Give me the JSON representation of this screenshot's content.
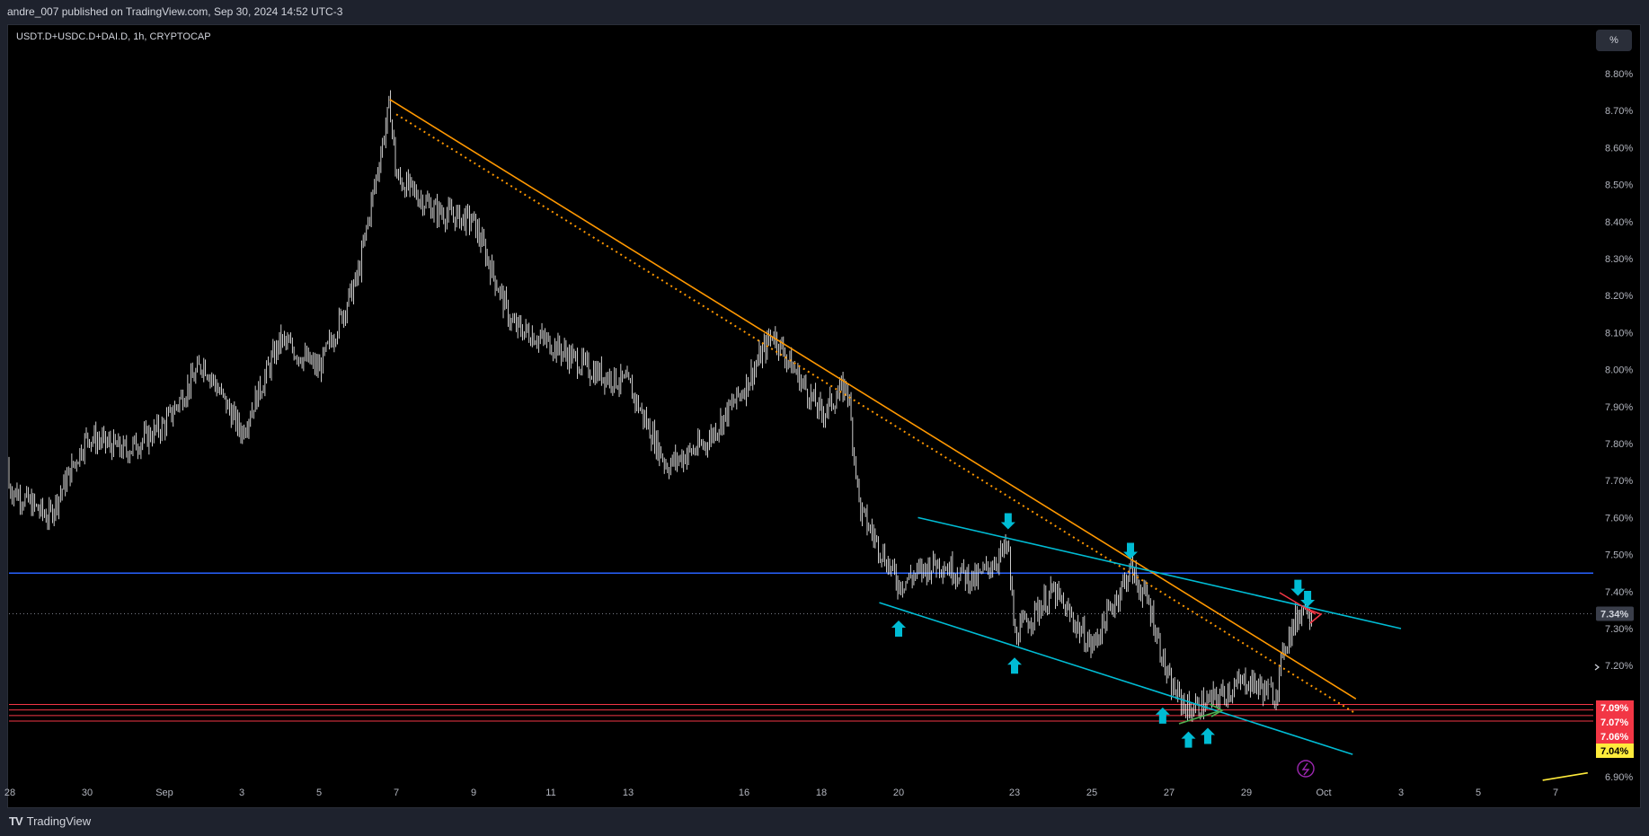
{
  "header": {
    "text": "andre_007 published on TradingView.com, Sep 30, 2024 14:52 UTC-3"
  },
  "symbol_label": "USDT.D+USDC.D+DAI.D, 1h, CRYPTOCAP",
  "scale_button": "%",
  "brand": {
    "logo": "TV",
    "name": "TradingView"
  },
  "colors": {
    "background": "#000000",
    "candle": "#ffffff",
    "downtrend": "#ff9800",
    "channel": "#00bcd4",
    "support": "#f23645",
    "resistance": "#2962ff",
    "arrow": "#00bcd4",
    "breakout": "#f23645",
    "bounce": "#4caf50"
  },
  "chart_data": {
    "type": "candlestick",
    "timeframe": "1h",
    "yscale": "percent",
    "ylim": [
      6.88,
      8.83
    ],
    "yticks": [
      "8.80%",
      "8.70%",
      "8.60%",
      "8.50%",
      "8.40%",
      "8.30%",
      "8.20%",
      "8.10%",
      "8.00%",
      "7.90%",
      "7.80%",
      "7.70%",
      "7.60%",
      "7.50%",
      "7.40%",
      "7.30%",
      "7.20%",
      "6.90%"
    ],
    "xticks": [
      "28",
      "30",
      "Sep",
      "3",
      "5",
      "7",
      "9",
      "11",
      "13",
      "16",
      "18",
      "20",
      "23",
      "25",
      "27",
      "29",
      "Oct",
      "3",
      "5",
      "7"
    ],
    "xtick_dates": [
      "2024-08-28",
      "2024-08-30",
      "2024-09-01",
      "2024-09-03",
      "2024-09-05",
      "2024-09-07",
      "2024-09-09",
      "2024-09-11",
      "2024-09-13",
      "2024-09-16",
      "2024-09-18",
      "2024-09-20",
      "2024-09-23",
      "2024-09-25",
      "2024-09-27",
      "2024-09-29",
      "2024-10-01",
      "2024-10-03",
      "2024-10-05",
      "2024-10-07"
    ],
    "approx_path": [
      [
        "2024-08-27",
        7.75
      ],
      [
        "2024-08-28",
        7.68
      ],
      [
        "2024-08-29",
        7.6
      ],
      [
        "2024-08-30",
        7.82
      ],
      [
        "2024-08-31",
        7.78
      ],
      [
        "2024-09-01",
        7.85
      ],
      [
        "2024-09-02",
        8.02
      ],
      [
        "2024-09-03",
        7.83
      ],
      [
        "2024-09-04",
        8.08
      ],
      [
        "2024-09-05",
        8.0
      ],
      [
        "2024-09-06",
        8.25
      ],
      [
        "2024-09-06T20",
        8.72
      ],
      [
        "2024-09-07",
        8.52
      ],
      [
        "2024-09-08",
        8.43
      ],
      [
        "2024-09-09",
        8.4
      ],
      [
        "2024-09-10",
        8.12
      ],
      [
        "2024-09-11",
        8.07
      ],
      [
        "2024-09-12",
        8.0
      ],
      [
        "2024-09-13",
        7.96
      ],
      [
        "2024-09-14",
        7.74
      ],
      [
        "2024-09-15",
        7.8
      ],
      [
        "2024-09-16",
        7.95
      ],
      [
        "2024-09-16T18",
        8.1
      ],
      [
        "2024-09-17",
        8.05
      ],
      [
        "2024-09-18",
        7.88
      ],
      [
        "2024-09-18T16",
        7.96
      ],
      [
        "2024-09-19",
        7.62
      ],
      [
        "2024-09-20",
        7.42
      ],
      [
        "2024-09-21",
        7.48
      ],
      [
        "2024-09-22",
        7.43
      ],
      [
        "2024-09-22T20",
        7.52
      ],
      [
        "2024-09-23",
        7.28
      ],
      [
        "2024-09-24",
        7.4
      ],
      [
        "2024-09-25",
        7.25
      ],
      [
        "2024-09-26",
        7.46
      ],
      [
        "2024-09-26T12",
        7.36
      ],
      [
        "2024-09-27",
        7.15
      ],
      [
        "2024-09-27T12",
        7.08
      ],
      [
        "2024-09-28",
        7.1
      ],
      [
        "2024-09-29",
        7.16
      ],
      [
        "2024-09-29T18",
        7.12
      ],
      [
        "2024-09-30",
        7.26
      ],
      [
        "2024-09-30T12",
        7.37
      ],
      [
        "2024-09-30T17",
        7.34
      ]
    ],
    "last_price_label": "7.34%",
    "price_badges": [
      {
        "label": "7.09%",
        "value": 7.09,
        "color": "#f23645"
      },
      {
        "label": "7.07%",
        "value": 7.07,
        "color": "#f23645"
      },
      {
        "label": "7.06%",
        "value": 7.06,
        "color": "#f23645"
      },
      {
        "label": "7.04%",
        "value": 7.04,
        "color": "#ffeb3b"
      }
    ],
    "horizontal_levels": [
      {
        "value": 7.45,
        "color": "#2962ff"
      },
      {
        "value": 7.095,
        "color": "#f23645"
      },
      {
        "value": 7.08,
        "color": "#f23645"
      },
      {
        "value": 7.065,
        "color": "#f23645"
      },
      {
        "value": 7.05,
        "color": "#f23645"
      },
      {
        "value": 7.34,
        "color": "#787b86",
        "style": "dotted"
      }
    ],
    "trendlines": [
      {
        "from": [
          "2024-09-06T20",
          8.73
        ],
        "to": [
          "2024-10-01T20",
          7.11
        ],
        "color": "#ff9800",
        "style": "solid"
      },
      {
        "from": [
          "2024-09-07",
          8.69
        ],
        "to": [
          "2024-10-01T20",
          7.07
        ],
        "color": "#ff9800",
        "style": "dotted"
      },
      {
        "from": [
          "2024-09-20T12",
          7.6
        ],
        "to": [
          "2024-10-03",
          7.3
        ],
        "color": "#00bcd4",
        "style": "solid"
      },
      {
        "from": [
          "2024-09-19T12",
          7.37
        ],
        "to": [
          "2024-10-01T18",
          6.96
        ],
        "color": "#00bcd4",
        "style": "solid"
      },
      {
        "from": [
          "2024-10-06T16",
          6.89
        ],
        "to": [
          "2024-10-07T20",
          6.91
        ],
        "color": "#ffeb3b",
        "style": "solid"
      }
    ],
    "arrows": [
      {
        "at": [
          "2024-09-20",
          7.3
        ],
        "dir": "up"
      },
      {
        "at": [
          "2024-09-23",
          7.2
        ],
        "dir": "up"
      },
      {
        "at": [
          "2024-09-26T20",
          7.065
        ],
        "dir": "up"
      },
      {
        "at": [
          "2024-09-27T12",
          7.0
        ],
        "dir": "up"
      },
      {
        "at": [
          "2024-09-28",
          7.01
        ],
        "dir": "up"
      },
      {
        "at": [
          "2024-09-22T20",
          7.59
        ],
        "dir": "down"
      },
      {
        "at": [
          "2024-09-26",
          7.51
        ],
        "dir": "down"
      },
      {
        "at": [
          "2024-09-30T08",
          7.41
        ],
        "dir": "down"
      },
      {
        "at": [
          "2024-09-30T14",
          7.38
        ],
        "dir": "down"
      }
    ]
  }
}
